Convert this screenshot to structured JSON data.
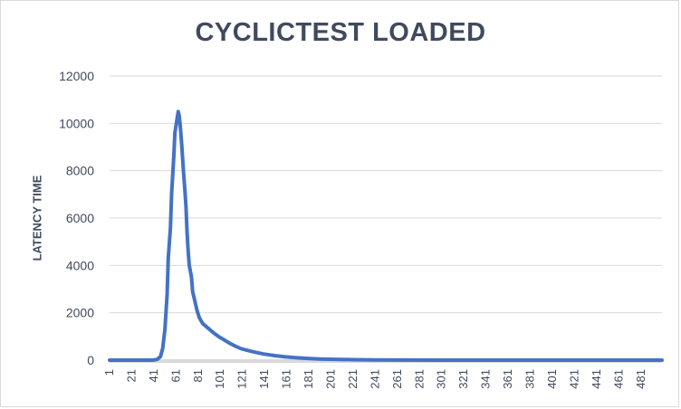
{
  "chart_data": {
    "type": "line",
    "title": "CYCLICTEST LOADED",
    "xlabel": "",
    "ylabel": "LATENCY TIME",
    "ylim": [
      0,
      12000
    ],
    "xlim": [
      1,
      500
    ],
    "y_ticks": [
      "0",
      "2000",
      "4000",
      "6000",
      "8000",
      "10000",
      "12000"
    ],
    "x_ticks": [
      "1",
      "21",
      "41",
      "61",
      "81",
      "101",
      "121",
      "141",
      "161",
      "181",
      "201",
      "221",
      "241",
      "261",
      "281",
      "301",
      "321",
      "341",
      "361",
      "381",
      "401",
      "421",
      "441",
      "461",
      "481"
    ],
    "grid": true,
    "legend": "none",
    "colors": {
      "line": "#4472c4",
      "grid": "#d9d9d9",
      "text": "#404a5e"
    },
    "series": [
      {
        "points": [
          [
            1,
            0
          ],
          [
            40,
            0
          ],
          [
            44,
            30
          ],
          [
            47,
            150
          ],
          [
            49,
            500
          ],
          [
            51,
            1300
          ],
          [
            53,
            2800
          ],
          [
            54,
            4300
          ],
          [
            56,
            5600
          ],
          [
            57,
            7000
          ],
          [
            59,
            8600
          ],
          [
            60,
            9600
          ],
          [
            62,
            10200
          ],
          [
            63,
            10500
          ],
          [
            64,
            10300
          ],
          [
            65,
            9800
          ],
          [
            66,
            9200
          ],
          [
            67,
            8500
          ],
          [
            68,
            7800
          ],
          [
            69,
            7200
          ],
          [
            70,
            6500
          ],
          [
            71,
            5400
          ],
          [
            72,
            4600
          ],
          [
            73,
            4000
          ],
          [
            75,
            3500
          ],
          [
            76,
            2900
          ],
          [
            78,
            2500
          ],
          [
            80,
            2100
          ],
          [
            82,
            1800
          ],
          [
            85,
            1550
          ],
          [
            90,
            1350
          ],
          [
            95,
            1150
          ],
          [
            100,
            980
          ],
          [
            105,
            840
          ],
          [
            110,
            700
          ],
          [
            115,
            580
          ],
          [
            120,
            480
          ],
          [
            130,
            360
          ],
          [
            140,
            260
          ],
          [
            150,
            190
          ],
          [
            160,
            140
          ],
          [
            170,
            100
          ],
          [
            180,
            70
          ],
          [
            190,
            50
          ],
          [
            200,
            40
          ],
          [
            210,
            30
          ],
          [
            220,
            20
          ],
          [
            240,
            10
          ],
          [
            260,
            5
          ],
          [
            300,
            0
          ],
          [
            500,
            0
          ]
        ]
      }
    ]
  }
}
